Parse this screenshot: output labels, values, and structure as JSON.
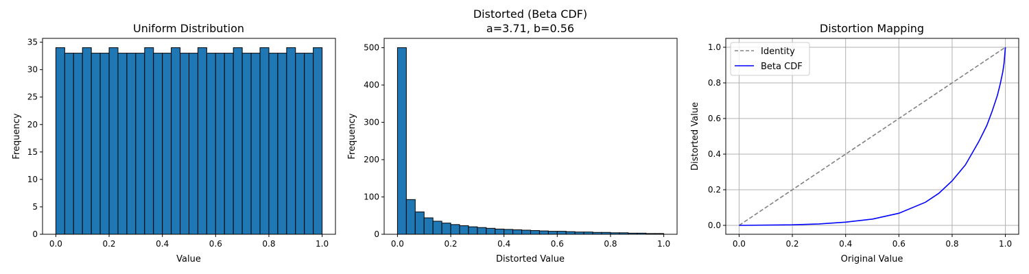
{
  "chart_data": [
    {
      "type": "bar",
      "title": "Uniform Distribution",
      "xlabel": "Value",
      "ylabel": "Frequency",
      "xlim": [
        -0.05,
        1.05
      ],
      "ylim": [
        0,
        35.7
      ],
      "xticks": [
        "0.0",
        "0.2",
        "0.4",
        "0.6",
        "0.8",
        "1.0"
      ],
      "yticks": [
        "0",
        "5",
        "10",
        "15",
        "20",
        "25",
        "30",
        "35"
      ],
      "bin_range": [
        0,
        1
      ],
      "values": [
        34,
        33,
        33,
        34,
        33,
        33,
        34,
        33,
        33,
        33,
        34,
        33,
        33,
        34,
        33,
        33,
        34,
        33,
        33,
        33,
        34,
        33,
        33,
        34,
        33,
        33,
        34,
        33,
        33,
        34
      ],
      "bar_color": "#1f77b4",
      "edge_color": "#000000",
      "grid": false
    },
    {
      "type": "bar",
      "title": "Distorted (Beta CDF)",
      "subtitle": "a=3.71, b=0.56",
      "xlabel": "Distorted Value",
      "ylabel": "Frequency",
      "xlim": [
        -0.05,
        1.05
      ],
      "ylim": [
        0,
        525
      ],
      "xticks": [
        "0.0",
        "0.2",
        "0.4",
        "0.6",
        "0.8",
        "1.0"
      ],
      "yticks": [
        "0",
        "100",
        "200",
        "300",
        "400",
        "500"
      ],
      "bin_range": [
        0,
        1
      ],
      "values": [
        500,
        93,
        60,
        44,
        35,
        30,
        26,
        23,
        20,
        18,
        16,
        14,
        13,
        12,
        11,
        10,
        9,
        8,
        8,
        7,
        6,
        6,
        5,
        5,
        4,
        4,
        3,
        3,
        2,
        2
      ],
      "bar_color": "#1f77b4",
      "edge_color": "#000000",
      "grid": false
    },
    {
      "type": "line",
      "title": "Distortion Mapping",
      "xlabel": "Original Value",
      "ylabel": "Distorted Value",
      "xlim": [
        -0.05,
        1.05
      ],
      "ylim": [
        -0.05,
        1.05
      ],
      "xticks": [
        "0.0",
        "0.2",
        "0.4",
        "0.6",
        "0.8",
        "1.0"
      ],
      "yticks": [
        "0.0",
        "0.2",
        "0.4",
        "0.6",
        "0.8",
        "1.0"
      ],
      "grid": true,
      "legend_position": "upper-left",
      "series": [
        {
          "name": "Identity",
          "color": "#808080",
          "style": "dashed",
          "x": [
            0,
            1
          ],
          "y": [
            0,
            1
          ]
        },
        {
          "name": "Beta CDF",
          "color": "#0000ff",
          "style": "solid",
          "x": [
            0,
            0.2,
            0.3,
            0.4,
            0.5,
            0.6,
            0.7,
            0.75,
            0.8,
            0.85,
            0.9,
            0.93,
            0.95,
            0.97,
            0.98,
            0.99,
            0.995,
            1.0
          ],
          "y": [
            0,
            0.003,
            0.008,
            0.018,
            0.035,
            0.068,
            0.13,
            0.18,
            0.25,
            0.34,
            0.47,
            0.56,
            0.64,
            0.73,
            0.79,
            0.86,
            0.91,
            1.0
          ]
        }
      ]
    }
  ]
}
